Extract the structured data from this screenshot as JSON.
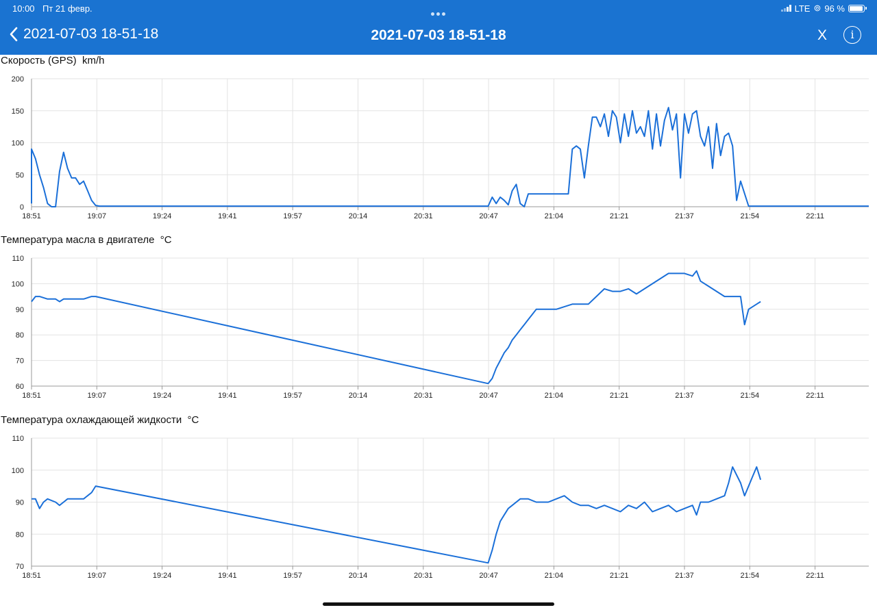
{
  "status_bar": {
    "time": "10:00",
    "date": "Пт 21 февр.",
    "network": "LTE",
    "battery": "96 %",
    "battery_level": 0.96
  },
  "nav": {
    "back_label": "2021-07-03 18-51-18",
    "title": "2021-07-03 18-51-18",
    "close_label": "X",
    "info_label": "i"
  },
  "colors": {
    "accent": "#1a73d1",
    "line": "#1a6fd8",
    "grid": "#e3e3e3"
  },
  "chart_data": [
    {
      "type": "line",
      "title": "Скорость (GPS)  km/h",
      "x_tick_labels": [
        "18:51",
        "19:07",
        "19:24",
        "19:41",
        "19:57",
        "20:14",
        "20:31",
        "20:47",
        "21:04",
        "21:21",
        "21:37",
        "21:54",
        "22:11"
      ],
      "ylim": [
        0,
        200
      ],
      "y_ticks": [
        0,
        50,
        100,
        150,
        200
      ],
      "grid": true,
      "series": [
        {
          "x": [
            "18:51",
            "18:51",
            "18:52",
            "18:53",
            "18:54",
            "18:55",
            "18:56",
            "18:57",
            "18:58",
            "18:59",
            "19:00",
            "19:01",
            "19:02",
            "19:03",
            "19:04",
            "19:05",
            "19:06",
            "19:07",
            "19:08",
            "19:20",
            "19:40",
            "20:00",
            "20:20",
            "20:40",
            "20:45",
            "20:46",
            "20:47",
            "20:48",
            "20:49",
            "20:50",
            "20:51",
            "20:52",
            "20:53",
            "20:54",
            "20:55",
            "20:56",
            "20:57",
            "21:00",
            "21:02",
            "21:05",
            "21:06",
            "21:07",
            "21:08",
            "21:09",
            "21:10",
            "21:11",
            "21:12",
            "21:13",
            "21:14",
            "21:15",
            "21:16",
            "21:17",
            "21:18",
            "21:19",
            "21:20",
            "21:21",
            "21:22",
            "21:23",
            "21:24",
            "21:25",
            "21:26",
            "21:27",
            "21:28",
            "21:29",
            "21:30",
            "21:31",
            "21:32",
            "21:33",
            "21:34",
            "21:35",
            "21:36",
            "21:37",
            "21:38",
            "21:39",
            "21:40",
            "21:41",
            "21:42",
            "21:43",
            "21:44",
            "21:45",
            "21:46",
            "21:47",
            "21:48",
            "21:50",
            "22:00",
            "22:10",
            "22:20"
          ],
          "values": [
            5,
            90,
            75,
            50,
            30,
            5,
            0,
            0,
            55,
            85,
            60,
            45,
            45,
            35,
            40,
            25,
            10,
            2,
            1,
            1,
            1,
            1,
            1,
            1,
            1,
            15,
            5,
            15,
            10,
            3,
            25,
            35,
            5,
            0,
            20,
            20,
            20,
            20,
            20,
            20,
            90,
            95,
            90,
            45,
            95,
            140,
            140,
            125,
            145,
            110,
            150,
            140,
            100,
            145,
            110,
            150,
            115,
            125,
            110,
            150,
            90,
            145,
            95,
            135,
            155,
            120,
            145,
            45,
            145,
            115,
            145,
            150,
            110,
            95,
            125,
            60,
            130,
            80,
            110,
            115,
            95,
            10,
            40,
            1,
            1,
            1,
            1
          ]
        }
      ]
    },
    {
      "type": "line",
      "title": "Температура масла в двигателе  °C",
      "x_tick_labels": [
        "18:51",
        "19:07",
        "19:24",
        "19:41",
        "19:57",
        "20:14",
        "20:31",
        "20:47",
        "21:04",
        "21:21",
        "21:37",
        "21:54",
        "22:11"
      ],
      "ylim": [
        60,
        110
      ],
      "y_ticks": [
        60,
        70,
        80,
        90,
        100,
        110
      ],
      "grid": true,
      "series": [
        {
          "x": [
            "18:51",
            "18:52",
            "18:53",
            "18:55",
            "18:57",
            "18:58",
            "18:59",
            "19:00",
            "19:02",
            "19:04",
            "19:06",
            "19:07",
            "20:45",
            "20:46",
            "20:47",
            "20:48",
            "20:49",
            "20:50",
            "20:51",
            "20:52",
            "20:53",
            "20:54",
            "20:55",
            "20:56",
            "20:57",
            "20:58",
            "20:59",
            "21:00",
            "21:02",
            "21:04",
            "21:06",
            "21:08",
            "21:10",
            "21:12",
            "21:14",
            "21:16",
            "21:18",
            "21:20",
            "21:22",
            "21:24",
            "21:26",
            "21:28",
            "21:30",
            "21:32",
            "21:34",
            "21:36",
            "21:37",
            "21:38",
            "21:40",
            "21:42",
            "21:44",
            "21:46",
            "21:48",
            "21:49",
            "21:50",
            "21:52",
            "21:53"
          ],
          "values": [
            93,
            95,
            95,
            94,
            94,
            93,
            94,
            94,
            94,
            94,
            95,
            95,
            61,
            63,
            67,
            70,
            73,
            75,
            78,
            80,
            82,
            84,
            86,
            88,
            90,
            90,
            90,
            90,
            90,
            91,
            92,
            92,
            92,
            95,
            98,
            97,
            97,
            98,
            96,
            98,
            100,
            102,
            104,
            104,
            104,
            103,
            105,
            101,
            99,
            97,
            95,
            95,
            95,
            84,
            90,
            92,
            93
          ]
        }
      ]
    },
    {
      "type": "line",
      "title": "Температура охлаждающей жидкости  °C",
      "x_tick_labels": [
        "18:51",
        "19:07",
        "19:24",
        "19:41",
        "19:57",
        "20:14",
        "20:31",
        "20:47",
        "21:04",
        "21:21",
        "21:37",
        "21:54",
        "22:11"
      ],
      "ylim": [
        70,
        110
      ],
      "y_ticks": [
        70,
        80,
        90,
        100,
        110
      ],
      "grid": true,
      "series": [
        {
          "x": [
            "18:51",
            "18:52",
            "18:53",
            "18:54",
            "18:55",
            "18:57",
            "18:58",
            "18:59",
            "19:00",
            "19:02",
            "19:04",
            "19:06",
            "19:07",
            "20:45",
            "20:46",
            "20:47",
            "20:48",
            "20:49",
            "20:50",
            "20:51",
            "20:53",
            "20:55",
            "20:57",
            "21:00",
            "21:02",
            "21:04",
            "21:06",
            "21:08",
            "21:10",
            "21:12",
            "21:14",
            "21:16",
            "21:18",
            "21:20",
            "21:22",
            "21:24",
            "21:26",
            "21:28",
            "21:30",
            "21:32",
            "21:34",
            "21:36",
            "21:37",
            "21:38",
            "21:40",
            "21:42",
            "21:44",
            "21:45",
            "21:46",
            "21:48",
            "21:49",
            "21:50",
            "21:51",
            "21:52",
            "21:53"
          ],
          "values": [
            91,
            91,
            88,
            90,
            91,
            90,
            89,
            90,
            91,
            91,
            91,
            93,
            95,
            71,
            75,
            80,
            84,
            86,
            88,
            89,
            91,
            91,
            90,
            90,
            91,
            92,
            90,
            89,
            89,
            88,
            89,
            88,
            87,
            89,
            88,
            90,
            87,
            88,
            89,
            87,
            88,
            89,
            86,
            90,
            90,
            91,
            92,
            96,
            101,
            96,
            92,
            95,
            98,
            101,
            97
          ]
        }
      ]
    }
  ]
}
